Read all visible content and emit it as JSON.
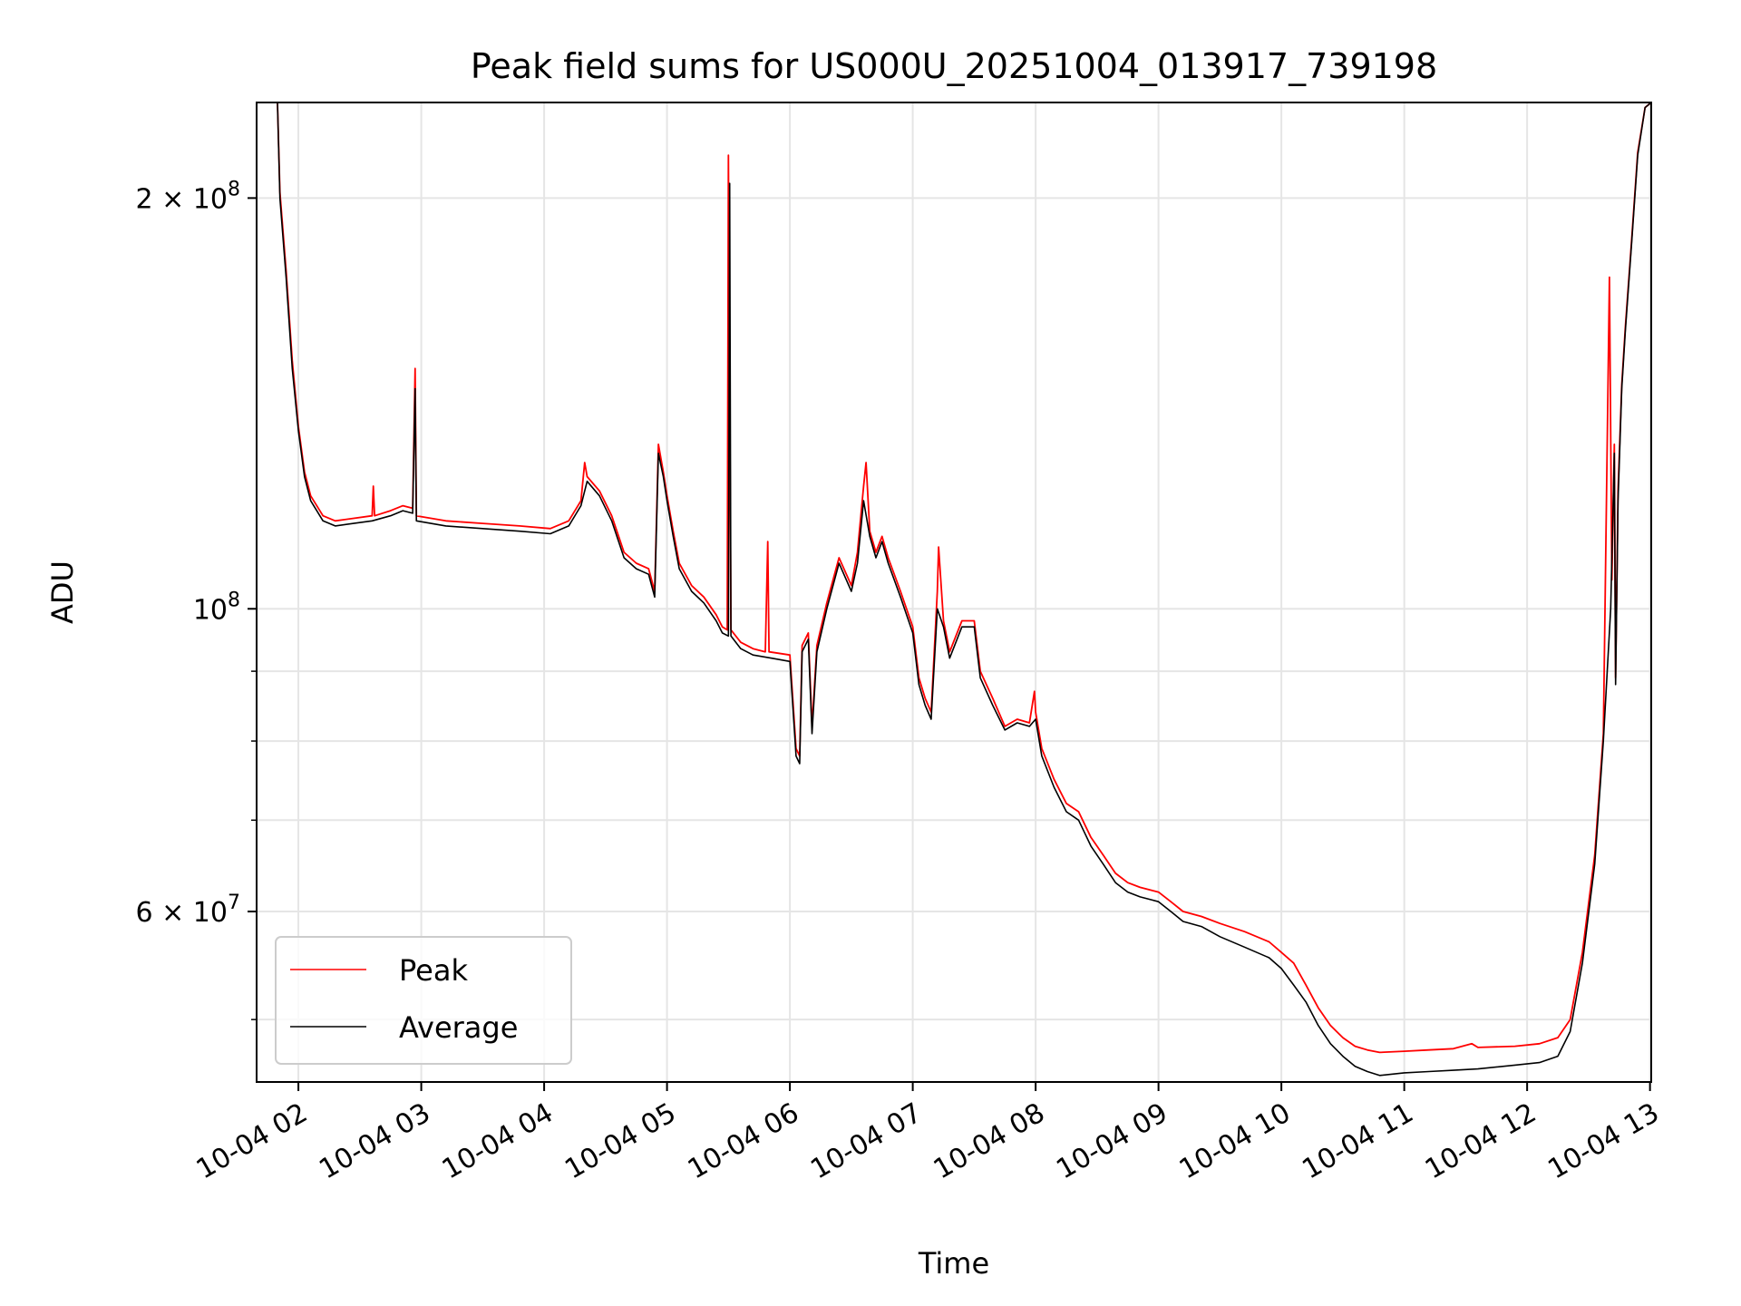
{
  "chart_data": {
    "type": "line",
    "title": "Peak field sums for US000U_20251004_013917_739198",
    "xlabel": "Time",
    "ylabel": "ADU",
    "yscale": "log",
    "ylim": [
      45000000,
      235000000
    ],
    "xlim_hours": [
      1.66,
      13.01
    ],
    "grid": true,
    "legend_position": "lower-left",
    "x_ticks": [
      {
        "hour": 2,
        "label": "10-04 02"
      },
      {
        "hour": 3,
        "label": "10-04 03"
      },
      {
        "hour": 4,
        "label": "10-04 04"
      },
      {
        "hour": 5,
        "label": "10-04 05"
      },
      {
        "hour": 6,
        "label": "10-04 06"
      },
      {
        "hour": 7,
        "label": "10-04 07"
      },
      {
        "hour": 8,
        "label": "10-04 08"
      },
      {
        "hour": 9,
        "label": "10-04 09"
      },
      {
        "hour": 10,
        "label": "10-04 10"
      },
      {
        "hour": 11,
        "label": "10-04 11"
      },
      {
        "hour": 12,
        "label": "10-04 12"
      },
      {
        "hour": 13,
        "label": "10-04 13"
      }
    ],
    "y_major_ticks": [
      {
        "value": 200000000,
        "base": "2 × 10",
        "exp": "8"
      },
      {
        "value": 100000000,
        "base": "10",
        "exp": "8"
      },
      {
        "value": 60000000,
        "base": "6 × 10",
        "exp": "7"
      }
    ],
    "y_minor_ticks": [
      50000000,
      70000000,
      80000000,
      90000000
    ],
    "series": [
      {
        "name": "Average",
        "color": "#000000",
        "points": [
          [
            1.66,
            235000000
          ],
          [
            1.83,
            235000000
          ],
          [
            1.85,
            200000000
          ],
          [
            1.9,
            175000000
          ],
          [
            1.95,
            150000000
          ],
          [
            2.0,
            135000000
          ],
          [
            2.05,
            125000000
          ],
          [
            2.1,
            120000000
          ],
          [
            2.2,
            116000000
          ],
          [
            2.3,
            115000000
          ],
          [
            2.45,
            115500000
          ],
          [
            2.6,
            116000000
          ],
          [
            2.75,
            117000000
          ],
          [
            2.85,
            118000000
          ],
          [
            2.93,
            117500000
          ],
          [
            2.95,
            145000000
          ],
          [
            2.96,
            116000000
          ],
          [
            3.2,
            115000000
          ],
          [
            3.5,
            114500000
          ],
          [
            3.8,
            114000000
          ],
          [
            4.05,
            113500000
          ],
          [
            4.2,
            115000000
          ],
          [
            4.3,
            119000000
          ],
          [
            4.35,
            124000000
          ],
          [
            4.45,
            121000000
          ],
          [
            4.55,
            116000000
          ],
          [
            4.65,
            109000000
          ],
          [
            4.75,
            107000000
          ],
          [
            4.85,
            106000000
          ],
          [
            4.9,
            102000000
          ],
          [
            4.93,
            130000000
          ],
          [
            4.97,
            125000000
          ],
          [
            5.0,
            120000000
          ],
          [
            5.05,
            113000000
          ],
          [
            5.1,
            107000000
          ],
          [
            5.2,
            103000000
          ],
          [
            5.3,
            101000000
          ],
          [
            5.4,
            98000000
          ],
          [
            5.45,
            96000000
          ],
          [
            5.5,
            95500000
          ],
          [
            5.51,
            205000000
          ],
          [
            5.52,
            95500000
          ],
          [
            5.6,
            93500000
          ],
          [
            5.7,
            92500000
          ],
          [
            5.85,
            92000000
          ],
          [
            6.0,
            91500000
          ],
          [
            6.05,
            78000000
          ],
          [
            6.08,
            77000000
          ],
          [
            6.1,
            93000000
          ],
          [
            6.15,
            95000000
          ],
          [
            6.18,
            81000000
          ],
          [
            6.22,
            93000000
          ],
          [
            6.3,
            100000000
          ],
          [
            6.4,
            108000000
          ],
          [
            6.5,
            103000000
          ],
          [
            6.55,
            108000000
          ],
          [
            6.6,
            120000000
          ],
          [
            6.65,
            113000000
          ],
          [
            6.7,
            109000000
          ],
          [
            6.75,
            112000000
          ],
          [
            6.8,
            108000000
          ],
          [
            6.9,
            102000000
          ],
          [
            7.0,
            96000000
          ],
          [
            7.05,
            88000000
          ],
          [
            7.1,
            85000000
          ],
          [
            7.15,
            83000000
          ],
          [
            7.2,
            100000000
          ],
          [
            7.25,
            97000000
          ],
          [
            7.3,
            92000000
          ],
          [
            7.4,
            97000000
          ],
          [
            7.5,
            97000000
          ],
          [
            7.55,
            89000000
          ],
          [
            7.65,
            85000000
          ],
          [
            7.75,
            81500000
          ],
          [
            7.85,
            82500000
          ],
          [
            7.95,
            82000000
          ],
          [
            8.0,
            83000000
          ],
          [
            8.05,
            78000000
          ],
          [
            8.15,
            74000000
          ],
          [
            8.25,
            71000000
          ],
          [
            8.35,
            70000000
          ],
          [
            8.45,
            67000000
          ],
          [
            8.55,
            65000000
          ],
          [
            8.65,
            63000000
          ],
          [
            8.75,
            62000000
          ],
          [
            8.85,
            61500000
          ],
          [
            9.0,
            61000000
          ],
          [
            9.1,
            60000000
          ],
          [
            9.2,
            59000000
          ],
          [
            9.35,
            58500000
          ],
          [
            9.5,
            57500000
          ],
          [
            9.7,
            56500000
          ],
          [
            9.9,
            55500000
          ],
          [
            10.0,
            54500000
          ],
          [
            10.1,
            53000000
          ],
          [
            10.2,
            51500000
          ],
          [
            10.3,
            49500000
          ],
          [
            10.4,
            48000000
          ],
          [
            10.5,
            47000000
          ],
          [
            10.6,
            46200000
          ],
          [
            10.7,
            45800000
          ],
          [
            10.8,
            45500000
          ],
          [
            11.0,
            45700000
          ],
          [
            11.2,
            45800000
          ],
          [
            11.4,
            45900000
          ],
          [
            11.6,
            46000000
          ],
          [
            11.9,
            46300000
          ],
          [
            12.1,
            46500000
          ],
          [
            12.25,
            47000000
          ],
          [
            12.35,
            49000000
          ],
          [
            12.45,
            55000000
          ],
          [
            12.55,
            65000000
          ],
          [
            12.62,
            80000000
          ],
          [
            12.68,
            100000000
          ],
          [
            12.71,
            130000000
          ],
          [
            12.72,
            88000000
          ],
          [
            12.74,
            120000000
          ],
          [
            12.77,
            145000000
          ],
          [
            12.8,
            160000000
          ],
          [
            12.85,
            185000000
          ],
          [
            12.9,
            215000000
          ],
          [
            12.96,
            233000000
          ],
          [
            13.01,
            235000000
          ]
        ]
      },
      {
        "name": "Peak",
        "color": "#ff0000",
        "points": [
          [
            1.66,
            235000000
          ],
          [
            1.83,
            235000000
          ],
          [
            1.85,
            202000000
          ],
          [
            1.9,
            177000000
          ],
          [
            1.95,
            152000000
          ],
          [
            2.0,
            136000000
          ],
          [
            2.05,
            126000000
          ],
          [
            2.1,
            121000000
          ],
          [
            2.2,
            117000000
          ],
          [
            2.3,
            116000000
          ],
          [
            2.45,
            116500000
          ],
          [
            2.6,
            117000000
          ],
          [
            2.61,
            123000000
          ],
          [
            2.62,
            117000000
          ],
          [
            2.75,
            118000000
          ],
          [
            2.85,
            119000000
          ],
          [
            2.93,
            118500000
          ],
          [
            2.95,
            150000000
          ],
          [
            2.96,
            117000000
          ],
          [
            3.2,
            116000000
          ],
          [
            3.5,
            115500000
          ],
          [
            3.8,
            115000000
          ],
          [
            4.05,
            114500000
          ],
          [
            4.2,
            116000000
          ],
          [
            4.3,
            120000000
          ],
          [
            4.33,
            128000000
          ],
          [
            4.35,
            125000000
          ],
          [
            4.45,
            122000000
          ],
          [
            4.55,
            117000000
          ],
          [
            4.65,
            110000000
          ],
          [
            4.75,
            108000000
          ],
          [
            4.85,
            107000000
          ],
          [
            4.9,
            103000000
          ],
          [
            4.93,
            132000000
          ],
          [
            4.97,
            126000000
          ],
          [
            5.0,
            121000000
          ],
          [
            5.05,
            114000000
          ],
          [
            5.1,
            108000000
          ],
          [
            5.2,
            104000000
          ],
          [
            5.3,
            102000000
          ],
          [
            5.4,
            99000000
          ],
          [
            5.45,
            97000000
          ],
          [
            5.49,
            96500000
          ],
          [
            5.5,
            215000000
          ],
          [
            5.52,
            96500000
          ],
          [
            5.6,
            94500000
          ],
          [
            5.7,
            93500000
          ],
          [
            5.8,
            93000000
          ],
          [
            5.82,
            112000000
          ],
          [
            5.83,
            93000000
          ],
          [
            6.0,
            92500000
          ],
          [
            6.05,
            79000000
          ],
          [
            6.08,
            78000000
          ],
          [
            6.1,
            94000000
          ],
          [
            6.15,
            96000000
          ],
          [
            6.18,
            82000000
          ],
          [
            6.22,
            94000000
          ],
          [
            6.3,
            101000000
          ],
          [
            6.4,
            109000000
          ],
          [
            6.5,
            104000000
          ],
          [
            6.55,
            110000000
          ],
          [
            6.6,
            123000000
          ],
          [
            6.62,
            128000000
          ],
          [
            6.65,
            114000000
          ],
          [
            6.7,
            110000000
          ],
          [
            6.75,
            113000000
          ],
          [
            6.8,
            109000000
          ],
          [
            6.9,
            103000000
          ],
          [
            7.0,
            97000000
          ],
          [
            7.05,
            89000000
          ],
          [
            7.1,
            86000000
          ],
          [
            7.15,
            84000000
          ],
          [
            7.2,
            103000000
          ],
          [
            7.21,
            111000000
          ],
          [
            7.25,
            98000000
          ],
          [
            7.3,
            93000000
          ],
          [
            7.4,
            98000000
          ],
          [
            7.5,
            98000000
          ],
          [
            7.55,
            90000000
          ],
          [
            7.65,
            86000000
          ],
          [
            7.75,
            82000000
          ],
          [
            7.85,
            83000000
          ],
          [
            7.95,
            82500000
          ],
          [
            7.99,
            87000000
          ],
          [
            8.0,
            84000000
          ],
          [
            8.05,
            79000000
          ],
          [
            8.15,
            75000000
          ],
          [
            8.25,
            72000000
          ],
          [
            8.35,
            71000000
          ],
          [
            8.45,
            68000000
          ],
          [
            8.55,
            66000000
          ],
          [
            8.65,
            64000000
          ],
          [
            8.75,
            63000000
          ],
          [
            8.85,
            62500000
          ],
          [
            9.0,
            62000000
          ],
          [
            9.1,
            61000000
          ],
          [
            9.2,
            60000000
          ],
          [
            9.35,
            59500000
          ],
          [
            9.5,
            58800000
          ],
          [
            9.7,
            58000000
          ],
          [
            9.9,
            57000000
          ],
          [
            10.0,
            56000000
          ],
          [
            10.1,
            55000000
          ],
          [
            10.2,
            53000000
          ],
          [
            10.3,
            51000000
          ],
          [
            10.4,
            49500000
          ],
          [
            10.5,
            48500000
          ],
          [
            10.6,
            47800000
          ],
          [
            10.7,
            47500000
          ],
          [
            10.8,
            47300000
          ],
          [
            11.0,
            47400000
          ],
          [
            11.2,
            47500000
          ],
          [
            11.4,
            47600000
          ],
          [
            11.55,
            48000000
          ],
          [
            11.6,
            47700000
          ],
          [
            11.9,
            47800000
          ],
          [
            12.1,
            48000000
          ],
          [
            12.25,
            48500000
          ],
          [
            12.35,
            50000000
          ],
          [
            12.45,
            56000000
          ],
          [
            12.55,
            66000000
          ],
          [
            12.62,
            81000000
          ],
          [
            12.67,
            175000000
          ],
          [
            12.69,
            105000000
          ],
          [
            12.71,
            132000000
          ],
          [
            12.72,
            89000000
          ],
          [
            12.74,
            122000000
          ],
          [
            12.77,
            146000000
          ],
          [
            12.8,
            161000000
          ],
          [
            12.85,
            186000000
          ],
          [
            12.9,
            216000000
          ],
          [
            12.96,
            233000000
          ],
          [
            13.01,
            235000000
          ]
        ]
      }
    ],
    "legend": [
      {
        "label": "Peak",
        "color": "#ff0000"
      },
      {
        "label": "Average",
        "color": "#000000"
      }
    ]
  }
}
